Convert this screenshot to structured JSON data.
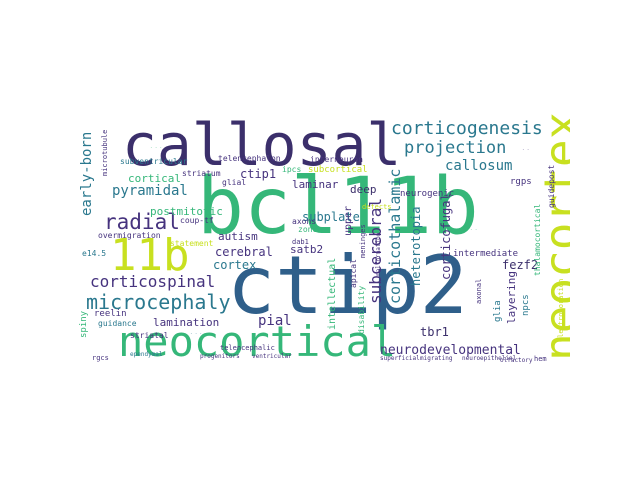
{
  "palette": {
    "navy": "#3b2f6b",
    "indigo": "#46337e",
    "blue": "#2f5f8a",
    "teal": "#2a788e",
    "cyan": "#21918c",
    "green": "#35b779",
    "lime": "#90d743",
    "yellow": "#c8e020"
  },
  "words": {
    "bcl11b": "bcl11b",
    "ctip2": "ctip2",
    "callosal": "callosal",
    "neocortical": "neocortical",
    "neocortex": "neocortex",
    "w11b": "11b",
    "corticogenesis": "corticogenesis",
    "projection": "projection",
    "microcephaly": "microcephaly",
    "radial": "radial",
    "corticospinal": "corticospinal",
    "neurodevelopmental": "neurodevelopmental",
    "callosum": "callosum",
    "early_born": "early-born",
    "pyramidal": "pyramidal",
    "cortical": "cortical",
    "postmitotic": "postmitotic",
    "ctip1": "ctip1",
    "cerebral": "cerebral",
    "cortex": "cortex",
    "autism": "autism",
    "lamination": "lamination",
    "pial": "pial",
    "tbr1": "tbr1",
    "subcerebral": "subcerebral",
    "corticothalamic": "corticothalamic",
    "neurogenesis": "neurogenesis",
    "fezf2": "fezf2",
    "subplate": "subplate",
    "laminar": "laminar",
    "deep": "deep",
    "satb2": "satb2",
    "corticofugal": "corticofugal",
    "heterotopia": "heterotopia",
    "layering": "layering",
    "subventricular": "subventricular",
    "telencephalon": "telencephalon",
    "interneuron": "interneuron",
    "subcortical": "subcortical",
    "ipcs": "ipcs",
    "glial": "glial",
    "striatum": "striatum",
    "coup_tf": "coup-tf",
    "neurogenic": "neurogenic",
    "rgps": "rgps",
    "intermediate": "intermediate",
    "reelin": "reelin",
    "overmigration": "overmigration",
    "guidance": "guidance",
    "striatal": "striatal",
    "axons": "axons",
    "zone": "zone",
    "upper": "upper",
    "intellectual": "intellectual",
    "apical": "apical",
    "glia": "glia",
    "npcs": "npcs",
    "thalamocortical": "thalamocortical",
    "guidepost": "guidepost",
    "spiny": "spiny",
    "rgcs": "rgcs",
    "e14_5": "e14.5",
    "hem": "hem",
    "disability": "disability",
    "meninges": "meninges",
    "microtubule": "microtubule",
    "dab1": "dab1",
    "statement": "statement",
    "ependymal": "ependymal",
    "defects": "defects",
    "electroporation": "electroporation",
    "telencephalic": "telencephalic",
    "axonal": "axonal",
    "malformation": "malformation",
    "progenitors": "progenitors",
    "ventricular": "ventricular",
    "superficial": "superficial",
    "migrating": "migrating",
    "olfactory": "olfactory",
    "neuroepithelial": "neuroepithelial"
  }
}
